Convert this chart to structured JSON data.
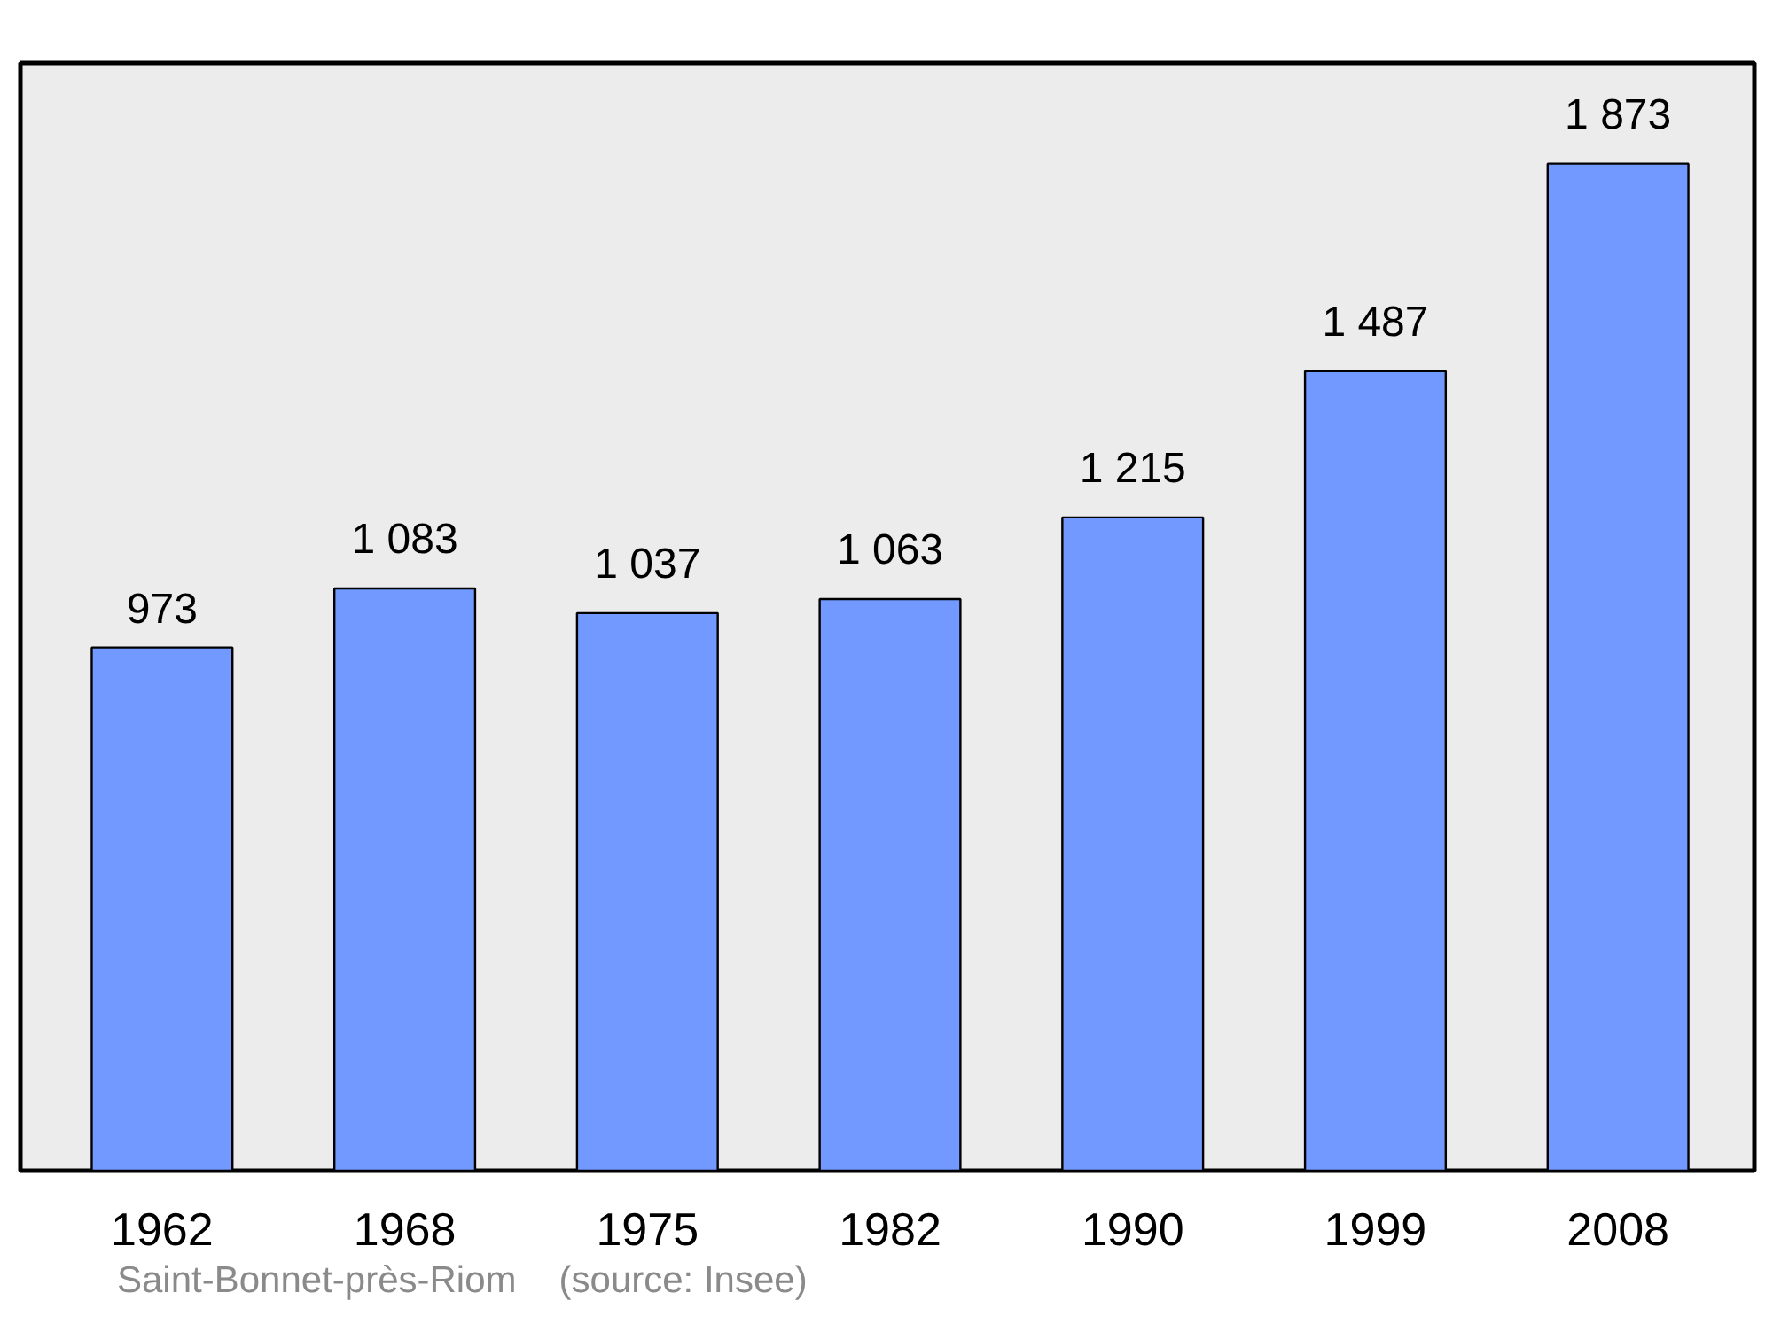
{
  "chart_data": {
    "type": "bar",
    "categories": [
      "1962",
      "1968",
      "1975",
      "1982",
      "1990",
      "1999",
      "2008"
    ],
    "values": [
      973,
      1083,
      1037,
      1063,
      1215,
      1487,
      1873
    ],
    "value_labels": [
      "973",
      "1 083",
      "1 037",
      "1 063",
      "1 215",
      "1 487",
      "1 873"
    ],
    "color": "#7299ff",
    "grid": false,
    "annotations": [
      "Saint-Bonnet-près-Riom",
      "(source: Insee)"
    ]
  }
}
